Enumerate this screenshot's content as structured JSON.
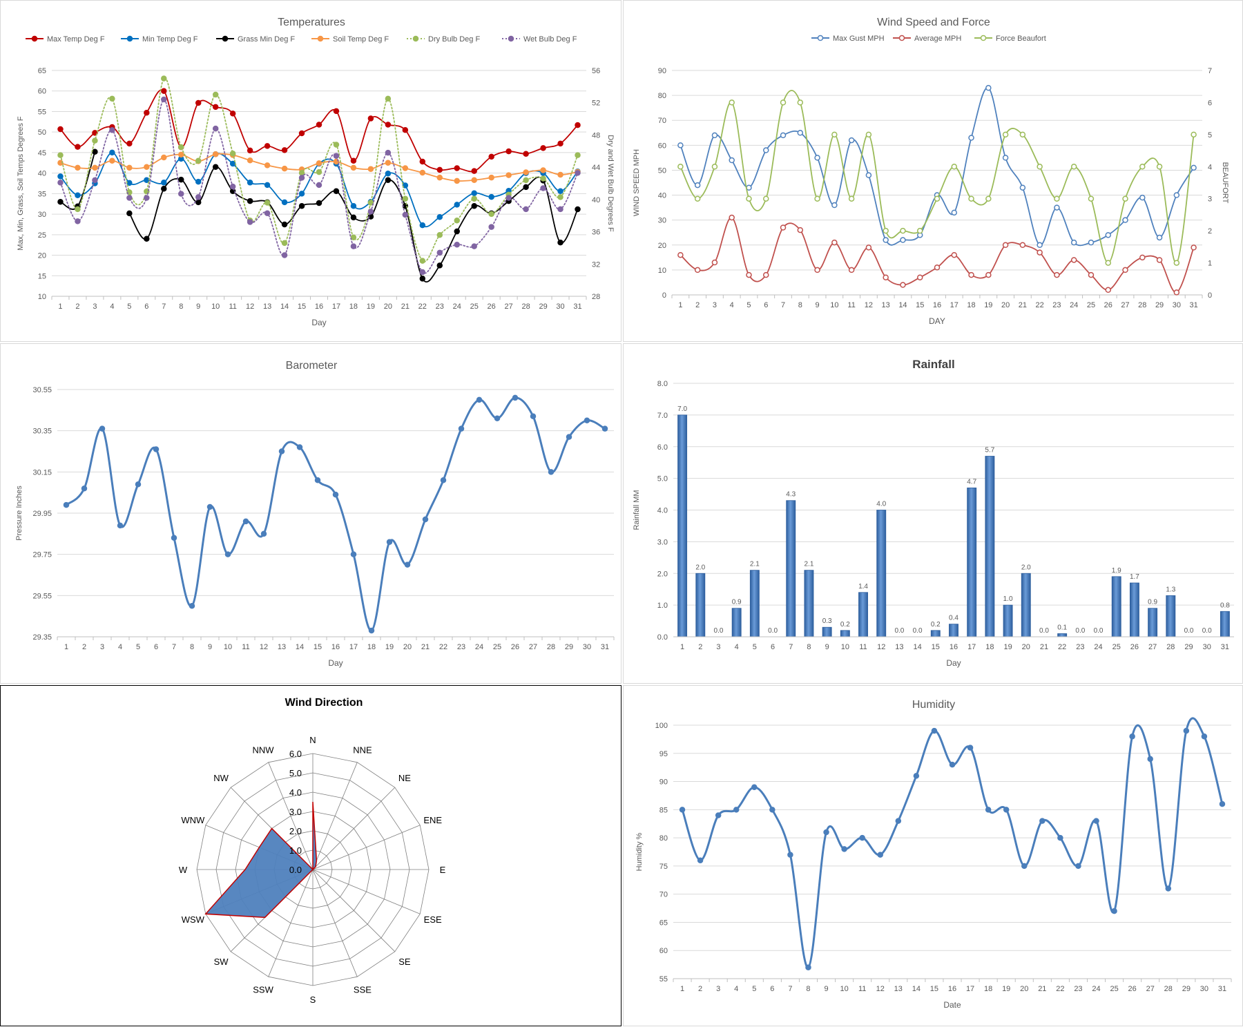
{
  "chart_data": [
    {
      "id": "temps",
      "type": "line",
      "title": "Temperatures",
      "xlabel": "Day",
      "ylabel": "Max, Min, Grass, Soil Temps Degrees F",
      "y2label": "Dry and Wet Bulb Degrees F",
      "ylim": [
        10,
        65
      ],
      "y2lim": [
        28,
        56
      ],
      "yticks": [
        10,
        15,
        20,
        25,
        30,
        35,
        40,
        45,
        50,
        55,
        60,
        65
      ],
      "y2ticks": [
        28,
        32,
        36,
        40,
        44,
        48,
        52,
        56
      ],
      "categories": [
        "1",
        "2",
        "3",
        "4",
        "5",
        "6",
        "7",
        "8",
        "9",
        "10",
        "11",
        "12",
        "13",
        "14",
        "15",
        "16",
        "17",
        "18",
        "19",
        "20",
        "21",
        "22",
        "23",
        "24",
        "25",
        "26",
        "27",
        "28",
        "29",
        "30",
        "31"
      ],
      "grid": true,
      "legend_position": "top",
      "series": [
        {
          "name": "Max Temp Deg F",
          "axis": "left",
          "color": "#c00000",
          "dash": false,
          "values": [
            50.7,
            46.4,
            49.8,
            51.2,
            47.2,
            54.7,
            60.0,
            46.3,
            57.1,
            56.1,
            54.5,
            45.5,
            46.6,
            45.6,
            49.7,
            51.8,
            55.1,
            43.0,
            53.3,
            51.8,
            50.5,
            42.8,
            40.8,
            41.2,
            40.5,
            44.0,
            45.3,
            44.7,
            46.1,
            47.2,
            51.7
          ]
        },
        {
          "name": "Min Temp Deg F",
          "axis": "left",
          "color": "#0070c0",
          "dash": false,
          "values": [
            39.2,
            34.6,
            37.5,
            45.0,
            37.6,
            38.3,
            37.7,
            43.5,
            37.9,
            44.6,
            42.3,
            37.7,
            37.1,
            32.9,
            35.0,
            42.3,
            42.3,
            32.0,
            33.0,
            39.9,
            37.0,
            27.3,
            29.3,
            32.3,
            35.1,
            34.2,
            35.7,
            40.0,
            40.0,
            35.6,
            40.4
          ]
        },
        {
          "name": "Grass Min Deg F",
          "axis": "left",
          "color": "#000000",
          "dash": false,
          "values": [
            33.0,
            31.9,
            45.2,
            null,
            30.2,
            24.0,
            36.2,
            38.4,
            32.9,
            41.5,
            35.6,
            33.2,
            32.9,
            27.5,
            32.0,
            32.7,
            35.6,
            29.2,
            29.4,
            38.3,
            32.0,
            14.3,
            17.5,
            25.8,
            32.0,
            30.2,
            33.2,
            36.6,
            38.2,
            23.1,
            31.2
          ]
        },
        {
          "name": "Soil Temp Deg F",
          "axis": "left",
          "color": "#f79646",
          "dash": false,
          "values": [
            42.5,
            41.3,
            41.3,
            43.0,
            41.3,
            41.5,
            43.8,
            44.5,
            42.9,
            44.6,
            44.4,
            43.1,
            41.9,
            41.1,
            40.9,
            42.4,
            42.8,
            41.3,
            41.0,
            42.5,
            41.2,
            40.1,
            38.9,
            38.1,
            38.3,
            38.9,
            39.5,
            40.2,
            40.7,
            39.6,
            40.3
          ]
        },
        {
          "name": "Dry Bulb Deg F",
          "axis": "right",
          "color": "#9bbb59",
          "dash": true,
          "values": [
            45.5,
            38.8,
            47.3,
            52.5,
            40.9,
            41.0,
            55.0,
            46.5,
            44.8,
            53.0,
            45.7,
            37.4,
            39.6,
            34.6,
            43.3,
            43.4,
            46.8,
            35.3,
            39.6,
            52.5,
            40.1,
            32.4,
            35.6,
            37.4,
            40.1,
            38.2,
            40.6,
            42.4,
            42.6,
            40.3,
            45.5
          ]
        },
        {
          "name": "Wet Bulb Deg F",
          "axis": "right",
          "color": "#8064a2",
          "dash": true,
          "values": [
            42.1,
            37.3,
            42.4,
            48.6,
            40.2,
            40.2,
            52.4,
            40.7,
            40.3,
            48.8,
            41.6,
            37.2,
            38.3,
            33.1,
            42.7,
            41.8,
            45.4,
            34.2,
            38.5,
            45.8,
            38.1,
            31.0,
            33.4,
            34.4,
            34.2,
            36.6,
            40.2,
            38.8,
            41.4,
            38.8,
            43.3
          ]
        }
      ]
    },
    {
      "id": "wind",
      "type": "line",
      "title": "Wind Speed and Force",
      "xlabel": "DAY",
      "ylabel": "WIND SPEED MPH",
      "y2label": "BEAUFORT",
      "ylim": [
        0,
        90
      ],
      "y2lim": [
        0,
        7
      ],
      "yticks": [
        0,
        10,
        20,
        30,
        40,
        50,
        60,
        70,
        80,
        90
      ],
      "y2ticks": [
        0,
        1,
        2,
        3,
        4,
        5,
        6,
        7
      ],
      "categories": [
        "1",
        "2",
        "3",
        "4",
        "5",
        "6",
        "7",
        "8",
        "9",
        "10",
        "11",
        "12",
        "13",
        "14",
        "15",
        "16",
        "17",
        "18",
        "19",
        "20",
        "21",
        "22",
        "23",
        "24",
        "25",
        "26",
        "27",
        "28",
        "29",
        "30",
        "31"
      ],
      "grid": true,
      "legend_position": "top",
      "series": [
        {
          "name": "Max Gust MPH",
          "axis": "left",
          "color": "#4f81bd",
          "values": [
            60,
            44,
            64,
            54,
            43,
            58,
            64,
            65,
            55,
            36,
            62,
            48,
            22,
            22,
            24,
            40,
            33,
            63,
            83,
            55,
            43,
            20,
            35,
            21,
            21,
            24,
            30,
            39,
            23,
            40,
            51
          ]
        },
        {
          "name": "Average MPH",
          "axis": "left",
          "color": "#c0504d",
          "values": [
            16,
            10,
            13,
            31,
            8,
            8,
            27,
            26,
            10,
            21,
            10,
            19,
            7,
            4,
            7,
            11,
            16,
            8,
            8,
            20,
            20,
            17,
            8,
            14,
            8,
            2,
            10,
            15,
            14,
            1,
            19
          ]
        },
        {
          "name": "Force Beaufort",
          "axis": "right",
          "color": "#9bbb59",
          "values": [
            4,
            3,
            4,
            6,
            3,
            3,
            6,
            6,
            3,
            5,
            3,
            5,
            2,
            2,
            2,
            3,
            4,
            3,
            3,
            5,
            5,
            4,
            3,
            4,
            3,
            1,
            3,
            4,
            4,
            1,
            5
          ]
        }
      ]
    },
    {
      "id": "baro",
      "type": "line",
      "title": "Barometer",
      "xlabel": "Day",
      "ylabel": "Pressure Inches",
      "ylim": [
        29.35,
        30.55
      ],
      "yticks": [
        "29.35",
        "29.55",
        "29.75",
        "29.95",
        "30.15",
        "30.35",
        "30.55"
      ],
      "categories": [
        "1",
        "2",
        "3",
        "4",
        "5",
        "6",
        "7",
        "8",
        "9",
        "10",
        "11",
        "12",
        "13",
        "14",
        "15",
        "16",
        "17",
        "18",
        "19",
        "20",
        "21",
        "22",
        "23",
        "24",
        "25",
        "26",
        "27",
        "28",
        "29",
        "30",
        "31"
      ],
      "grid": true,
      "series": [
        {
          "name": "",
          "color": "#4a7ebb",
          "values": [
            29.99,
            30.07,
            30.36,
            29.89,
            30.09,
            30.26,
            29.83,
            29.5,
            29.98,
            29.75,
            29.91,
            29.85,
            30.25,
            30.27,
            30.11,
            30.04,
            29.75,
            29.38,
            29.81,
            29.7,
            29.92,
            30.11,
            30.36,
            30.5,
            30.41,
            30.51,
            30.42,
            30.15,
            30.32,
            30.4,
            30.36
          ]
        }
      ]
    },
    {
      "id": "rain",
      "type": "bar",
      "title": "Rainfall",
      "xlabel": "Day",
      "ylabel": "Rainfall MM",
      "ylim": [
        0,
        8
      ],
      "yticks": [
        "0.0",
        "1.0",
        "2.0",
        "3.0",
        "4.0",
        "5.0",
        "6.0",
        "7.0",
        "8.0"
      ],
      "categories": [
        "1",
        "2",
        "3",
        "4",
        "5",
        "6",
        "7",
        "8",
        "9",
        "10",
        "11",
        "12",
        "13",
        "14",
        "15",
        "16",
        "17",
        "18",
        "19",
        "20",
        "21",
        "22",
        "23",
        "24",
        "25",
        "26",
        "27",
        "28",
        "29",
        "30",
        "31"
      ],
      "values": [
        7.0,
        2.0,
        0.0,
        0.9,
        2.1,
        0.0,
        4.3,
        2.1,
        0.3,
        0.2,
        1.4,
        4.0,
        0.0,
        0.0,
        0.2,
        0.4,
        4.7,
        5.7,
        1.0,
        2.0,
        0.0,
        0.1,
        0.0,
        0.0,
        1.9,
        1.7,
        0.9,
        1.3,
        0.0,
        0.0,
        0.8
      ],
      "labels": [
        "7.0",
        "2.0",
        "0.0",
        "0.9",
        "2.1",
        "0.0",
        "4.3",
        "2.1",
        "0.3",
        "0.2",
        "1.4",
        "4.0",
        "0.0",
        "0.0",
        "0.2",
        "0.4",
        "4.7",
        "5.7",
        "1.0",
        "2.0",
        "0.0",
        "0.1",
        "0.0",
        "0.0",
        "1.9",
        "1.7",
        "0.9",
        "1.3",
        "0.0",
        "0.0",
        "0.8"
      ],
      "grid": true,
      "color": "#4a7ebb"
    },
    {
      "id": "dir",
      "type": "radar",
      "title": "Wind Direction",
      "rlim": [
        0,
        6
      ],
      "rticks": [
        "0.0",
        "1.0",
        "2.0",
        "3.0",
        "4.0",
        "5.0",
        "6.0"
      ],
      "categories": [
        "N",
        "NNE",
        "NE",
        "ENE",
        "E",
        "ESE",
        "SE",
        "SSE",
        "S",
        "SSW",
        "SW",
        "WSW",
        "W",
        "WNW",
        "NW",
        "NNW"
      ],
      "values": [
        3.5,
        0.5,
        0.2,
        0,
        0,
        0,
        0,
        0,
        0,
        0,
        3.5,
        6.0,
        3.5,
        3.0,
        3.0,
        0
      ],
      "fill": "#4f81bd",
      "stroke": "#c00000"
    },
    {
      "id": "hum",
      "type": "line",
      "title": "Humidity",
      "xlabel": "Date",
      "ylabel": "Humidity %",
      "ylim": [
        55,
        100
      ],
      "yticks": [
        55,
        60,
        65,
        70,
        75,
        80,
        85,
        90,
        95,
        100
      ],
      "categories": [
        "1",
        "2",
        "3",
        "4",
        "5",
        "6",
        "7",
        "8",
        "9",
        "10",
        "11",
        "12",
        "13",
        "14",
        "15",
        "16",
        "17",
        "18",
        "19",
        "20",
        "21",
        "22",
        "23",
        "24",
        "25",
        "26",
        "27",
        "28",
        "29",
        "30",
        "31"
      ],
      "grid": true,
      "series": [
        {
          "name": "",
          "color": "#4a7ebb",
          "values": [
            85,
            76,
            84,
            85,
            89,
            85,
            77,
            57,
            81,
            78,
            80,
            77,
            83,
            91,
            99,
            93,
            96,
            85,
            85,
            75,
            83,
            80,
            75,
            83,
            67,
            98,
            94,
            71,
            99,
            98,
            86
          ]
        }
      ]
    }
  ]
}
